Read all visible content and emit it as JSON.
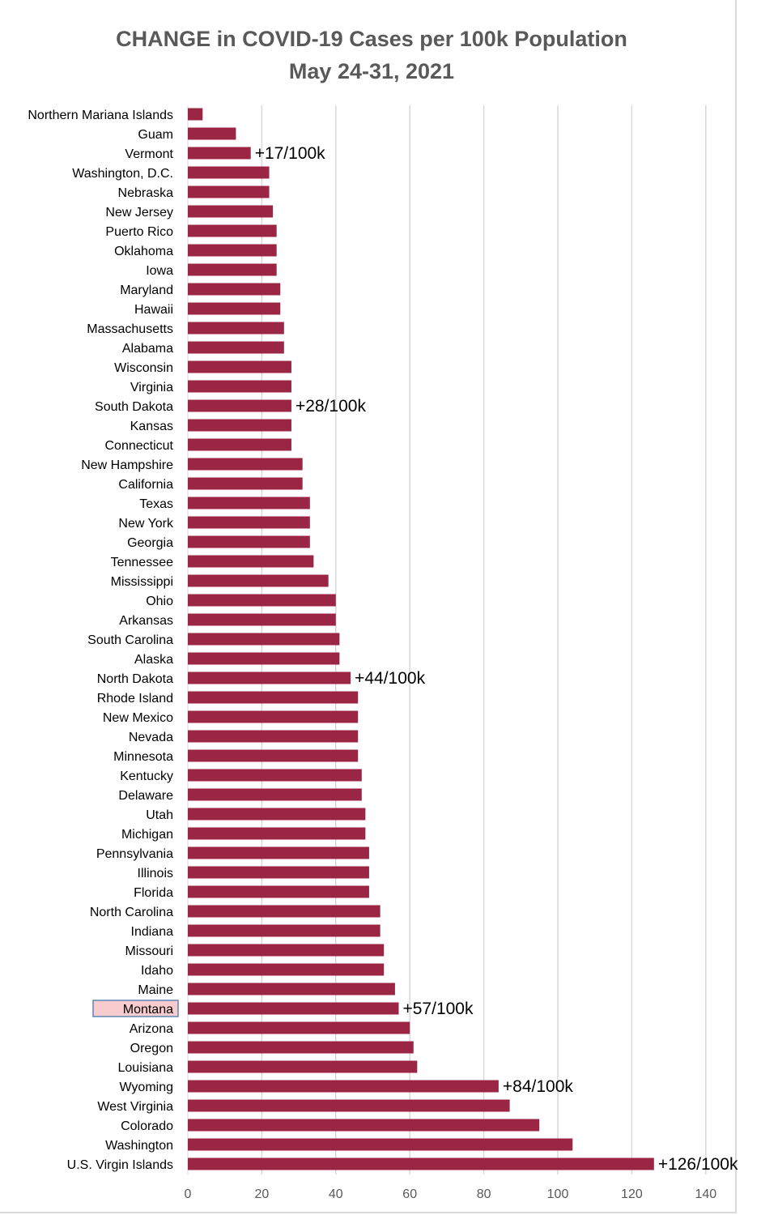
{
  "chart_data": {
    "type": "bar",
    "orientation": "horizontal",
    "title": "CHANGE in COVID-19 Cases per 100k Population",
    "subtitle": "May 24-31, 2021",
    "xlim": [
      0,
      140
    ],
    "x_ticks": [
      0,
      20,
      40,
      60,
      80,
      100,
      120,
      140
    ],
    "grid": "vertical",
    "bar_color": "#9b2545",
    "highlight": {
      "category": "Montana",
      "fill": "#f8cbcf",
      "border": "#5b87b3"
    },
    "categories": [
      "Northern Mariana Islands",
      "Guam",
      "Vermont",
      "Washington, D.C.",
      "Nebraska",
      "New Jersey",
      "Puerto Rico",
      "Oklahoma",
      "Iowa",
      "Maryland",
      "Hawaii",
      "Massachusetts",
      "Alabama",
      "Wisconsin",
      "Virginia",
      "South Dakota",
      "Kansas",
      "Connecticut",
      "New Hampshire",
      "California",
      "Texas",
      "New York",
      "Georgia",
      "Tennessee",
      "Mississippi",
      "Ohio",
      "Arkansas",
      "South Carolina",
      "Alaska",
      "North Dakota",
      "Rhode Island",
      "New Mexico",
      "Nevada",
      "Minnesota",
      "Kentucky",
      "Delaware",
      "Utah",
      "Michigan",
      "Pennsylvania",
      "Illinois",
      "Florida",
      "North Carolina",
      "Indiana",
      "Missouri",
      "Idaho",
      "Maine",
      "Montana",
      "Arizona",
      "Oregon",
      "Louisiana",
      "Wyoming",
      "West Virginia",
      "Colorado",
      "Washington",
      "U.S. Virgin Islands"
    ],
    "values": [
      4,
      13,
      17,
      22,
      22,
      23,
      24,
      24,
      24,
      25,
      25,
      26,
      26,
      28,
      28,
      28,
      28,
      28,
      31,
      31,
      33,
      33,
      33,
      34,
      38,
      40,
      40,
      41,
      41,
      44,
      46,
      46,
      46,
      46,
      47,
      47,
      48,
      48,
      49,
      49,
      49,
      52,
      52,
      53,
      53,
      56,
      57,
      60,
      61,
      62,
      84,
      87,
      95,
      104,
      126
    ],
    "annotations": [
      {
        "category": "Vermont",
        "text": "+17/100k"
      },
      {
        "category": "South Dakota",
        "text": "+28/100k"
      },
      {
        "category": "North Dakota",
        "text": "+44/100k"
      },
      {
        "category": "Montana",
        "text": "+57/100k"
      },
      {
        "category": "Wyoming",
        "text": "+84/100k"
      },
      {
        "category": "U.S. Virgin Islands",
        "text": "+126/100k"
      }
    ]
  }
}
